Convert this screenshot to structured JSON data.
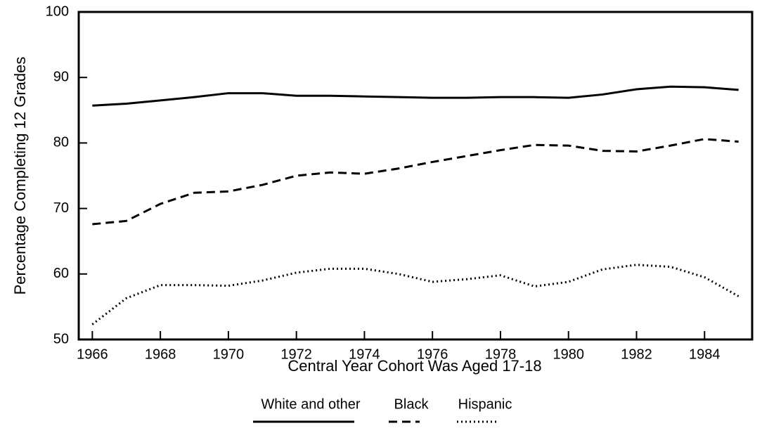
{
  "chart_data": {
    "type": "line",
    "x_label": "Central Year Cohort Was Aged 17-18",
    "y_label": "Percentage Completing 12 Grades",
    "x": [
      1966,
      1967,
      1968,
      1969,
      1970,
      1971,
      1972,
      1973,
      1974,
      1975,
      1976,
      1977,
      1978,
      1979,
      1980,
      1981,
      1982,
      1983,
      1984,
      1985
    ],
    "series": [
      {
        "name": "White and other",
        "color": "#000000",
        "line_style": "solid",
        "values": [
          85.7,
          86.0,
          86.5,
          87.0,
          87.6,
          87.6,
          87.2,
          87.2,
          87.1,
          87.0,
          86.9,
          86.9,
          87.0,
          87.0,
          86.9,
          87.4,
          88.2,
          88.6,
          88.5,
          88.1
        ]
      },
      {
        "name": "Black",
        "color": "#000000",
        "line_style": "dashed",
        "values": [
          67.6,
          68.1,
          70.7,
          72.4,
          72.6,
          73.6,
          75.0,
          75.5,
          75.3,
          76.1,
          77.1,
          78.0,
          78.9,
          79.7,
          79.6,
          78.8,
          78.7,
          79.6,
          80.6,
          80.2
        ]
      },
      {
        "name": "Hispanic",
        "color": "#000000",
        "line_style": "dotted",
        "values": [
          52.3,
          56.3,
          58.3,
          58.3,
          58.2,
          59.0,
          60.2,
          60.8,
          60.8,
          60.0,
          58.8,
          59.2,
          59.8,
          58.1,
          58.8,
          60.7,
          61.4,
          61.1,
          59.5,
          56.6
        ]
      }
    ],
    "xlim": [
      1965.6,
      1985.4
    ],
    "ylim": [
      50,
      100
    ],
    "xticks": [
      1966,
      1968,
      1970,
      1972,
      1974,
      1976,
      1978,
      1980,
      1982,
      1984
    ],
    "yticks": [
      50,
      60,
      70,
      80,
      90,
      100
    ],
    "legend": "bottom"
  }
}
